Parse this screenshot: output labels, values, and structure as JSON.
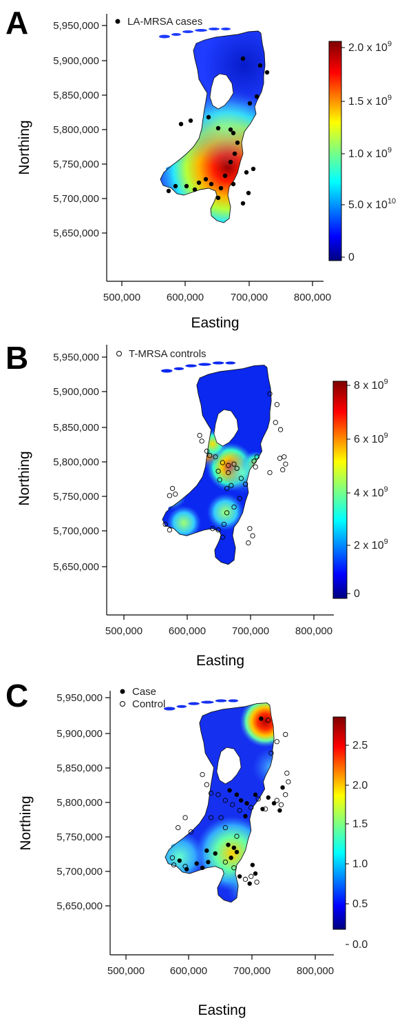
{
  "panels": [
    {
      "letter": "A",
      "legend": "LA-MRSA cases",
      "colorbar_labels": [
        "2.0 x 10",
        "1.5 x 10",
        "1.0 x 10",
        "5.0 x 10",
        "0"
      ],
      "colorbar_exponents": [
        "9",
        "9",
        "9",
        "10",
        ""
      ]
    },
    {
      "letter": "B",
      "legend": "T-MRSA controls",
      "colorbar_labels": [
        "8 x 10",
        "6 x 10",
        "4 x 10",
        "2 x 10",
        "0"
      ],
      "colorbar_exponents": [
        "9",
        "9",
        "9",
        "9",
        ""
      ]
    },
    {
      "letter": "C",
      "legend_case": "Case",
      "legend_control": "Control",
      "colorbar_labels": [
        "2.5",
        "2.0",
        "1.5",
        "1.0",
        "0.5",
        "0.0"
      ],
      "colorbar_exponents": [
        "",
        "",
        "",
        "",
        "",
        ""
      ]
    }
  ],
  "axes": {
    "xlabel": "Easting",
    "ylabel": "Northing",
    "x_ticks": [
      "500,000",
      "600,000",
      "700,000",
      "800,000"
    ],
    "y_ticks": [
      "5,950,000",
      "5,900,000",
      "5,850,000",
      "5,800,000",
      "5,750,000",
      "5,700,000",
      "5,650,000"
    ]
  }
}
